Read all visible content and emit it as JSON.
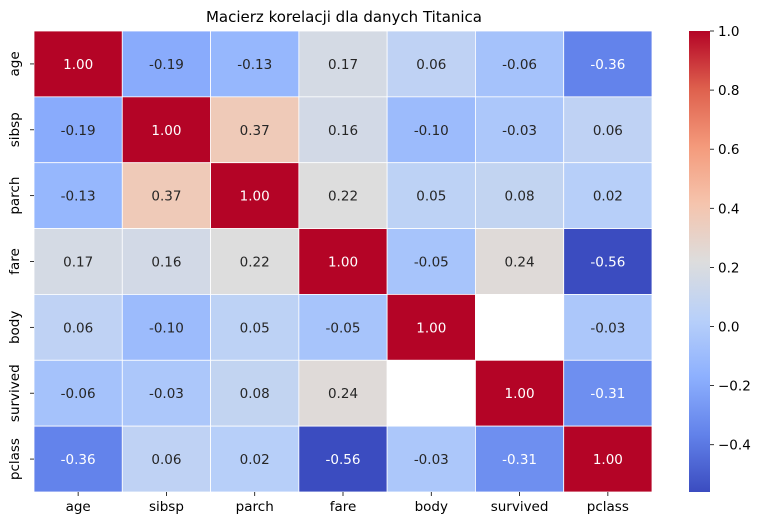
{
  "chart_data": {
    "type": "heatmap",
    "title": "Macierz korelacji dla danych Titanica",
    "xlabel": "",
    "ylabel": "",
    "categories": [
      "age",
      "sibsp",
      "parch",
      "fare",
      "body",
      "survived",
      "pclass"
    ],
    "matrix": [
      [
        1.0,
        -0.19,
        -0.13,
        0.17,
        0.06,
        -0.06,
        -0.36
      ],
      [
        -0.19,
        1.0,
        0.37,
        0.16,
        -0.1,
        -0.03,
        0.06
      ],
      [
        -0.13,
        0.37,
        1.0,
        0.22,
        0.05,
        0.08,
        0.02
      ],
      [
        0.17,
        0.16,
        0.22,
        1.0,
        -0.05,
        0.24,
        -0.56
      ],
      [
        0.06,
        -0.1,
        0.05,
        -0.05,
        1.0,
        null,
        -0.03
      ],
      [
        -0.06,
        -0.03,
        0.08,
        0.24,
        null,
        1.0,
        -0.31
      ],
      [
        -0.36,
        0.06,
        0.02,
        -0.56,
        -0.03,
        -0.31,
        1.0
      ]
    ],
    "number_format": "0.00",
    "colormap": "coolwarm",
    "vmin": -0.56,
    "vmax": 1.0,
    "colorbar_ticks": [
      1.0,
      0.8,
      0.6,
      0.4,
      0.2,
      0.0,
      -0.2,
      -0.4
    ],
    "colorbar_tick_labels": [
      "1.0",
      "0.8",
      "0.6",
      "0.4",
      "0.2",
      "0.0",
      "−0.2",
      "−0.4"
    ],
    "missing_cells_color": "#ffffff",
    "cell_border_color": "#ffffff"
  }
}
